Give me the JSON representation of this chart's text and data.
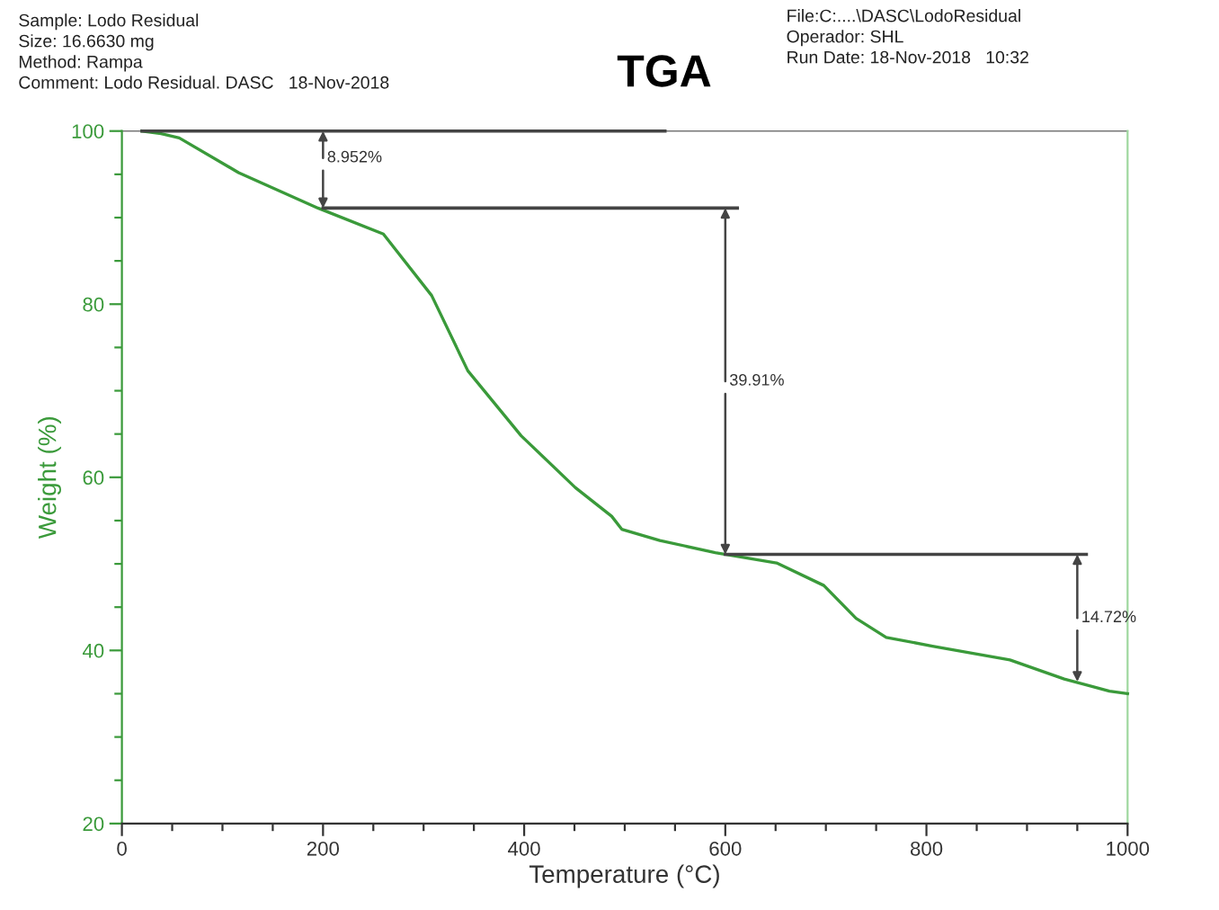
{
  "chart_data": {
    "type": "line",
    "title": "TGA",
    "xlabel": "Temperature (°C)",
    "ylabel": "Weight (%)",
    "series": [
      {
        "color": "#3a9a3a",
        "x": [
          20,
          39,
          57,
          116,
          195,
          260,
          308,
          344,
          397,
          451,
          487,
          497,
          535,
          590,
          651,
          698,
          730,
          760,
          806,
          883,
          937,
          982,
          1000
        ],
        "values": [
          100,
          99.7,
          99.2,
          95.2,
          91.1,
          88.1,
          81.0,
          72.3,
          64.8,
          58.8,
          55.5,
          54.0,
          52.7,
          51.3,
          50.1,
          47.5,
          43.7,
          41.5,
          40.5,
          38.9,
          36.7,
          35.3,
          35.0
        ]
      },
      {
        "color": "#444444",
        "x": [
          20,
          540
        ],
        "values": [
          100,
          100
        ]
      },
      {
        "color": "#444444",
        "x": [
          200,
          612
        ],
        "values": [
          91.1,
          91.1
        ]
      },
      {
        "color": "#444444",
        "x": [
          600,
          959
        ],
        "values": [
          51.1,
          51.1
        ]
      }
    ],
    "xlim": [
      0,
      1000
    ],
    "ylim": [
      20,
      100
    ],
    "xticks": [
      0,
      {
        "value": 50,
        "label": null
      },
      {
        "value": 100,
        "label": null
      },
      {
        "value": 150,
        "label": null
      },
      200,
      {
        "value": 250,
        "label": null
      },
      {
        "value": 300,
        "label": null
      },
      {
        "value": 350,
        "label": null
      },
      400,
      {
        "value": 450,
        "label": null
      },
      {
        "value": 500,
        "label": null
      },
      {
        "value": 550,
        "label": null
      },
      600,
      {
        "value": 650,
        "label": null
      },
      {
        "value": 700,
        "label": null
      },
      {
        "value": 750,
        "label": null
      },
      800,
      {
        "value": 850,
        "label": null
      },
      {
        "value": 900,
        "label": null
      },
      {
        "value": 950,
        "label": null
      },
      1000
    ],
    "yticks": [
      20,
      {
        "value": 25,
        "label": null
      },
      {
        "value": 30,
        "label": null
      },
      {
        "value": 35,
        "label": null
      },
      40,
      {
        "value": 45,
        "label": null
      },
      {
        "value": 50,
        "label": null
      },
      {
        "value": 55,
        "label": null
      },
      60,
      {
        "value": 65,
        "label": null
      },
      {
        "value": 70,
        "label": null
      },
      {
        "value": 75,
        "label": null
      },
      80,
      {
        "value": 85,
        "label": null
      },
      {
        "value": 90,
        "label": null
      },
      {
        "value": 95,
        "label": null
      },
      100
    ],
    "grid": false,
    "marker": "none",
    "line_style": "solid",
    "annotations": [
      {
        "text": "8.952%",
        "x": 200,
        "y": 91.1
      },
      {
        "text": "39.91%",
        "x": 600,
        "y": 51.1
      },
      {
        "text": "14.72%",
        "x": 950,
        "y": 36.4
      },
      "Sample: Lodo Residual\nSize: 16.6630 mg\nMethod: Rampa\nComment: Lodo Residual. DASC   18-Nov-2018",
      "File:C:....\\DASC\\LodoResidual\nOperador: SHL\nRun Date: 18-Nov-2018   10:32"
    ]
  }
}
